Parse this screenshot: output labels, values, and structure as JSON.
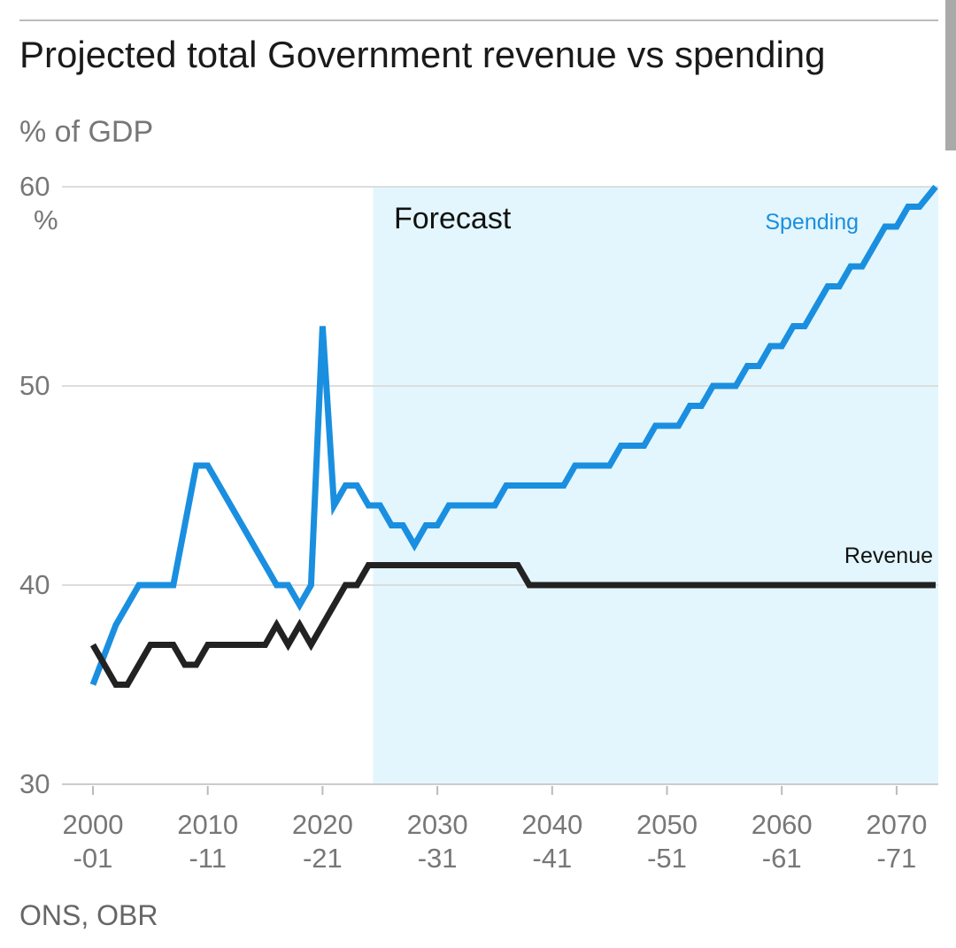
{
  "chart_data": {
    "type": "line",
    "title": "Projected total Government revenue vs spending",
    "ylabel": "% of GDP",
    "xlabel": "",
    "source": "ONS, OBR",
    "ylim": [
      30,
      60
    ],
    "xlim": [
      2000,
      2073.6
    ],
    "yticks": [
      {
        "v": 60,
        "label": "60",
        "unit": "%"
      },
      {
        "v": 50,
        "label": "50"
      },
      {
        "v": 40,
        "label": "40"
      },
      {
        "v": 30,
        "label": "30"
      }
    ],
    "xticks": [
      {
        "v": 2000,
        "l1": "2000",
        "l2": "-01"
      },
      {
        "v": 2010,
        "l1": "2010",
        "l2": "-11"
      },
      {
        "v": 2020,
        "l1": "2020",
        "l2": "-21"
      },
      {
        "v": 2030,
        "l1": "2030",
        "l2": "-31"
      },
      {
        "v": 2040,
        "l1": "2040",
        "l2": "-41"
      },
      {
        "v": 2050,
        "l1": "2050",
        "l2": "-51"
      },
      {
        "v": 2060,
        "l1": "2060",
        "l2": "-61"
      },
      {
        "v": 2070,
        "l1": "2070",
        "l2": "-71"
      }
    ],
    "forecast": {
      "label": "Forecast",
      "start": 2024.4
    },
    "series": [
      {
        "name": "Spending",
        "color": "#1a8fe0",
        "points": [
          [
            2000,
            35
          ],
          [
            2002,
            38
          ],
          [
            2004,
            40
          ],
          [
            2007,
            40
          ],
          [
            2009,
            46
          ],
          [
            2010,
            46
          ],
          [
            2016,
            40
          ],
          [
            2017,
            40
          ],
          [
            2018,
            39
          ],
          [
            2019,
            40
          ],
          [
            2020,
            53
          ],
          [
            2021,
            44
          ],
          [
            2022,
            45
          ],
          [
            2023,
            45
          ],
          [
            2024,
            44
          ],
          [
            2025,
            44
          ],
          [
            2026,
            43
          ],
          [
            2027,
            43
          ],
          [
            2028,
            42
          ],
          [
            2029,
            43
          ],
          [
            2030,
            43
          ],
          [
            2031,
            44
          ],
          [
            2035,
            44
          ],
          [
            2036,
            45
          ],
          [
            2041,
            45
          ],
          [
            2042,
            46
          ],
          [
            2045,
            46
          ],
          [
            2046,
            47
          ],
          [
            2048,
            47
          ],
          [
            2049,
            48
          ],
          [
            2051,
            48
          ],
          [
            2052,
            49
          ],
          [
            2053,
            49
          ],
          [
            2054,
            50
          ],
          [
            2056,
            50
          ],
          [
            2057,
            51
          ],
          [
            2058,
            51
          ],
          [
            2059,
            52
          ],
          [
            2060,
            52
          ],
          [
            2061,
            53
          ],
          [
            2062,
            53
          ],
          [
            2064,
            55
          ],
          [
            2065,
            55
          ],
          [
            2066,
            56
          ],
          [
            2067,
            56
          ],
          [
            2069,
            58
          ],
          [
            2070,
            58
          ],
          [
            2071,
            59
          ],
          [
            2072,
            59
          ],
          [
            2073.4,
            60
          ]
        ]
      },
      {
        "name": "Revenue",
        "color": "#222222",
        "points": [
          [
            2000,
            37
          ],
          [
            2002,
            35
          ],
          [
            2003,
            35
          ],
          [
            2005,
            37
          ],
          [
            2007,
            37
          ],
          [
            2008,
            36
          ],
          [
            2009,
            36
          ],
          [
            2010,
            37
          ],
          [
            2015,
            37
          ],
          [
            2016,
            38
          ],
          [
            2017,
            37
          ],
          [
            2018,
            38
          ],
          [
            2019,
            37
          ],
          [
            2022,
            40
          ],
          [
            2023,
            40
          ],
          [
            2024,
            41
          ],
          [
            2037,
            41
          ],
          [
            2038,
            40
          ],
          [
            2073.4,
            40
          ]
        ]
      }
    ]
  }
}
